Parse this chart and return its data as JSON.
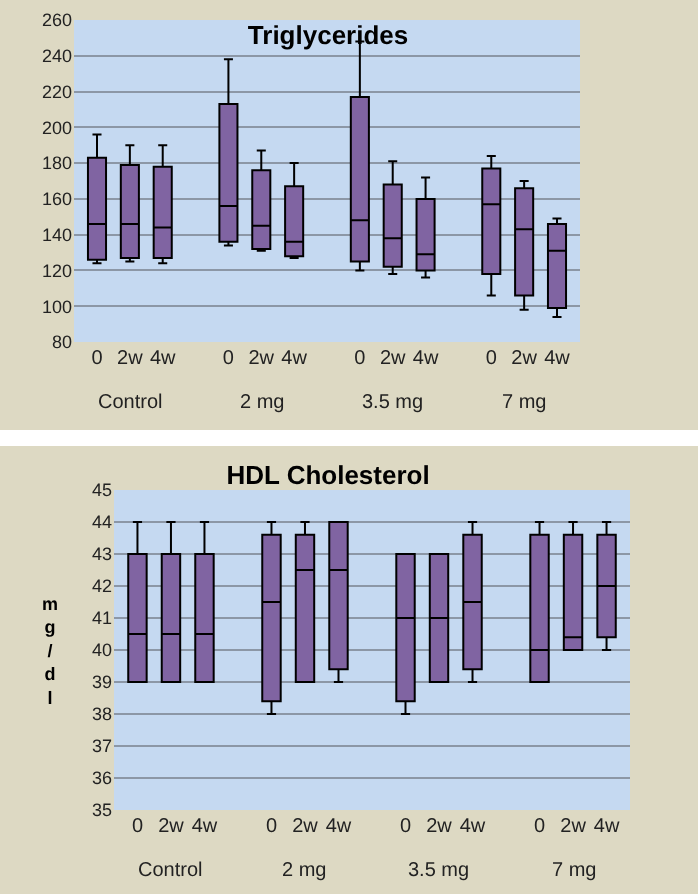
{
  "chart_data": [
    {
      "type": "box",
      "title": "Triglycerides",
      "categories": [
        "0",
        "2w",
        "4w",
        "0",
        "2w",
        "4w",
        "0",
        "2w",
        "4w",
        "0",
        "2w",
        "4w"
      ],
      "series": [
        {
          "color": "#8064a2",
          "boxes": [
            {
              "low": 124,
              "q1": 126,
              "median": 146,
              "q3": 183,
              "high": 196
            },
            {
              "low": 125,
              "q1": 127,
              "median": 146,
              "q3": 179,
              "high": 190
            },
            {
              "low": 124,
              "q1": 127,
              "median": 144,
              "q3": 178,
              "high": 190
            },
            {
              "low": 134,
              "q1": 136,
              "median": 156,
              "q3": 213,
              "high": 238
            },
            {
              "low": 131,
              "q1": 132,
              "median": 145,
              "q3": 176,
              "high": 187
            },
            {
              "low": 127,
              "q1": 128,
              "median": 136,
              "q3": 167,
              "high": 180
            },
            {
              "low": 120,
              "q1": 125,
              "median": 148,
              "q3": 217,
              "high": 248
            },
            {
              "low": 118,
              "q1": 122,
              "median": 138,
              "q3": 168,
              "high": 181
            },
            {
              "low": 116,
              "q1": 120,
              "median": 129,
              "q3": 160,
              "high": 172
            },
            {
              "low": 106,
              "q1": 118,
              "median": 157,
              "q3": 177,
              "high": 184
            },
            {
              "low": 98,
              "q1": 106,
              "median": 143,
              "q3": 166,
              "high": 170
            },
            {
              "low": 94,
              "q1": 99,
              "median": 131,
              "q3": 146,
              "high": 149
            }
          ]
        }
      ],
      "ylim": [
        80,
        260
      ],
      "yticks": [
        80,
        100,
        120,
        140,
        160,
        180,
        200,
        220,
        240,
        260
      ],
      "grid": "y",
      "annotations": [
        "Control",
        "2 mg",
        "3.5 mg",
        "7 mg"
      ]
    },
    {
      "type": "box",
      "title": "HDL Cholesterol",
      "ylabel": "mg/dl",
      "categories": [
        "0",
        "2w",
        "4w",
        "0",
        "2w",
        "4w",
        "0",
        "2w",
        "4w",
        "0",
        "2w",
        "4w"
      ],
      "series": [
        {
          "color": "#8064a2",
          "boxes": [
            {
              "low": 39,
              "q1": 39,
              "median": 40.5,
              "q3": 43,
              "high": 44
            },
            {
              "low": 39,
              "q1": 39,
              "median": 40.5,
              "q3": 43,
              "high": 44
            },
            {
              "low": 39,
              "q1": 39,
              "median": 40.5,
              "q3": 43,
              "high": 44
            },
            {
              "low": 38,
              "q1": 38.4,
              "median": 41.5,
              "q3": 43.6,
              "high": 44
            },
            {
              "low": 39,
              "q1": 39,
              "median": 42.5,
              "q3": 43.6,
              "high": 44
            },
            {
              "low": 39,
              "q1": 39.4,
              "median": 42.5,
              "q3": 44,
              "high": 44
            },
            {
              "low": 38,
              "q1": 38.4,
              "median": 41,
              "q3": 43,
              "high": 43
            },
            {
              "low": 39,
              "q1": 39,
              "median": 41,
              "q3": 43,
              "high": 43
            },
            {
              "low": 39,
              "q1": 39.4,
              "median": 41.5,
              "q3": 43.6,
              "high": 44
            },
            {
              "low": 39,
              "q1": 39,
              "median": 40,
              "q3": 43.6,
              "high": 44
            },
            {
              "low": 40,
              "q1": 40,
              "median": 40.4,
              "q3": 43.6,
              "high": 44
            },
            {
              "low": 40,
              "q1": 40.4,
              "median": 42,
              "q3": 43.6,
              "high": 44
            }
          ]
        }
      ],
      "ylim": [
        35,
        45
      ],
      "yticks": [
        35,
        36,
        37,
        38,
        39,
        40,
        41,
        42,
        43,
        44,
        45
      ],
      "grid": "y",
      "annotations": [
        "Control",
        "2 mg",
        "3.5 mg",
        "7 mg"
      ]
    }
  ]
}
